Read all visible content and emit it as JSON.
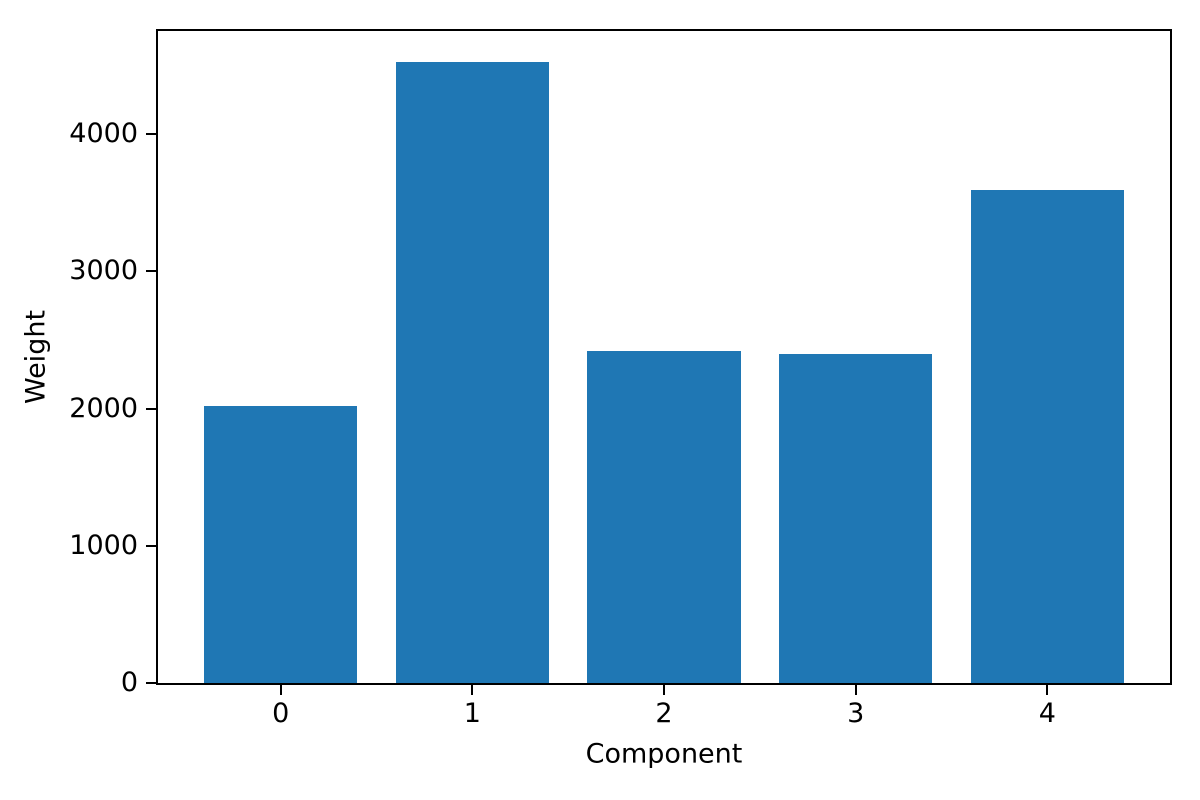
{
  "chart_data": {
    "type": "bar",
    "title": "",
    "xlabel": "Component",
    "ylabel": "Weight",
    "categories": [
      "0",
      "1",
      "2",
      "3",
      "4"
    ],
    "values": [
      2015,
      4525,
      2420,
      2400,
      3595
    ],
    "y_ticks": [
      0,
      1000,
      2000,
      3000,
      4000
    ],
    "ylim": [
      0,
      4750
    ],
    "xlim": [
      -0.64,
      4.64
    ],
    "bar_width": 0.8,
    "bar_color": "#1f77b4",
    "axis_color": "#000000",
    "background_color": "#ffffff",
    "grid": false,
    "legend": "none"
  }
}
